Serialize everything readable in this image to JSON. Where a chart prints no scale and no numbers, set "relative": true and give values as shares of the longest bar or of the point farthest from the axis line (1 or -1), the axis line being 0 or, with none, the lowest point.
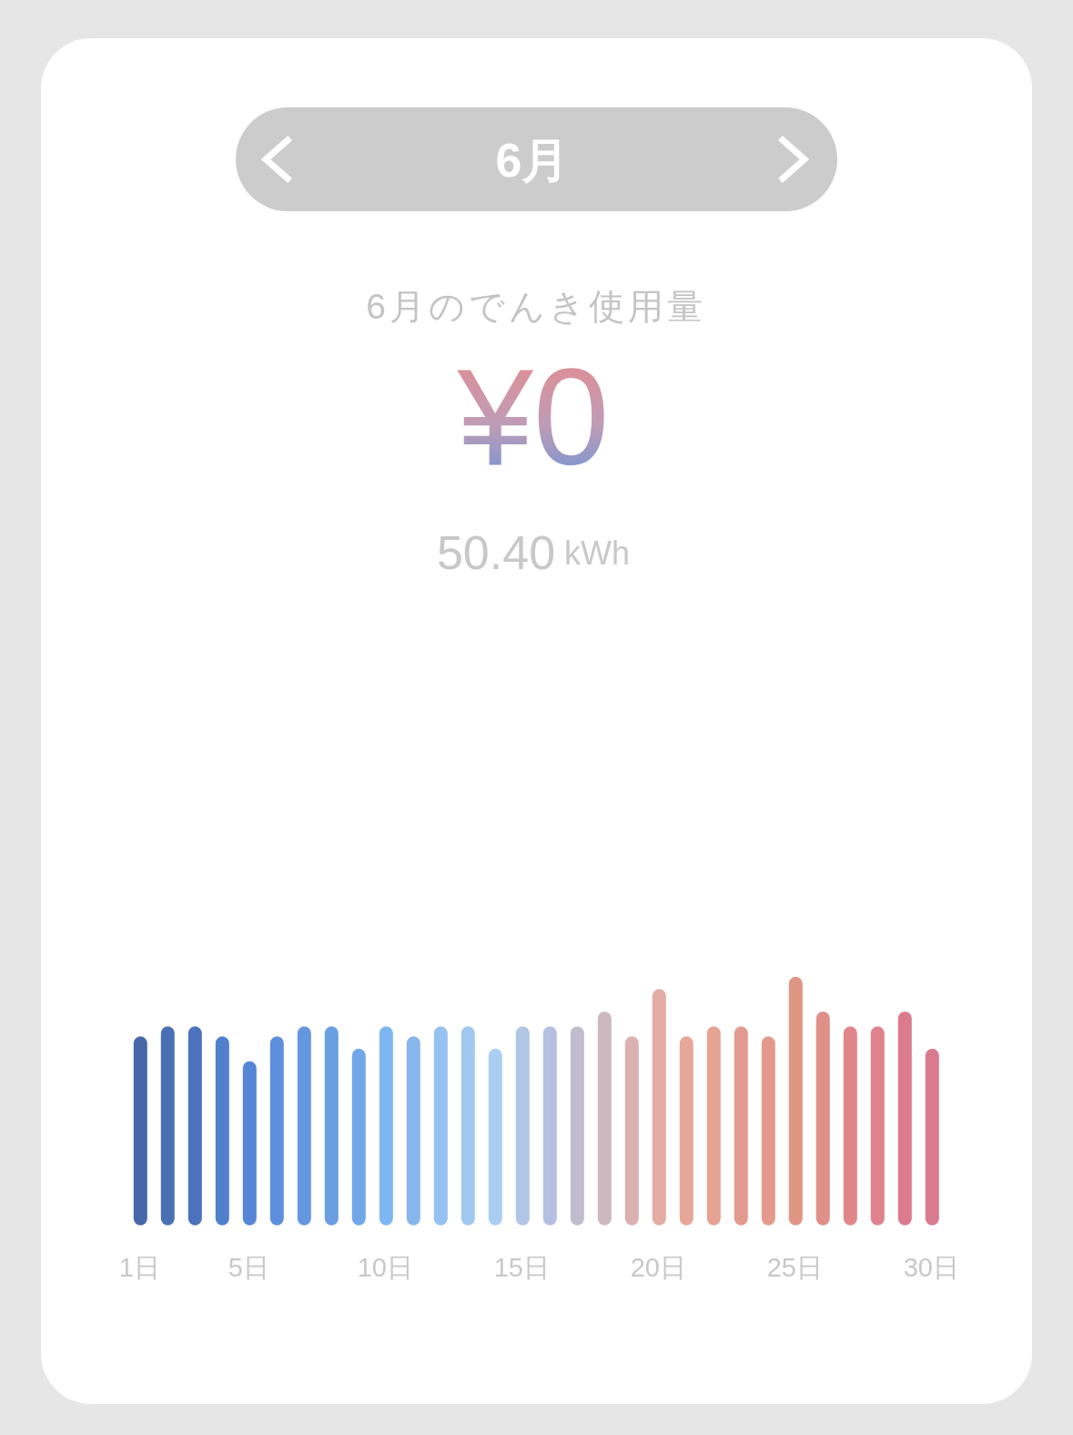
{
  "chart_data": {
    "type": "bar",
    "title": "6月",
    "subtitle": "6月のでんき使用量",
    "annotations": [
      "¥0",
      "50.40 kWh"
    ],
    "relative": true,
    "categories": [
      "1日",
      null,
      null,
      null,
      "5日",
      null,
      null,
      null,
      null,
      "10日",
      null,
      null,
      null,
      null,
      "15日",
      null,
      null,
      null,
      null,
      "20日",
      null,
      null,
      null,
      null,
      "25日",
      null,
      null,
      null,
      null,
      "30日"
    ],
    "values": [
      0.76,
      0.8,
      0.8,
      0.76,
      0.66,
      0.76,
      0.8,
      0.8,
      0.71,
      0.8,
      0.76,
      0.8,
      0.8,
      0.71,
      0.8,
      0.8,
      0.8,
      0.86,
      0.76,
      0.95,
      0.76,
      0.8,
      0.8,
      0.76,
      1,
      0.86,
      0.8,
      0.8,
      0.86,
      0.71
    ],
    "colors": [
      "#4767a8",
      "#4a6fb5",
      "#4d72bc",
      "#5080cc",
      "#5585d6",
      "#5d8fdc",
      "#6596e0",
      "#6a9fe3",
      "#72a7e8",
      "#7db6f2",
      "#86b6ec",
      "#95c2f0",
      "#a0c8f0",
      "#aacdf2",
      "#b0c6e4",
      "#b5bfe2",
      "#c0bccc",
      "#cdb8c0",
      "#dbb0b0",
      "#e3aca4",
      "#e6a698",
      "#e5a394",
      "#e39a8e",
      "#e39a8c",
      "#e09584",
      "#df9088",
      "#e0868a",
      "#e0828c",
      "#dc7a8e",
      "#d97a90"
    ]
  }
}
